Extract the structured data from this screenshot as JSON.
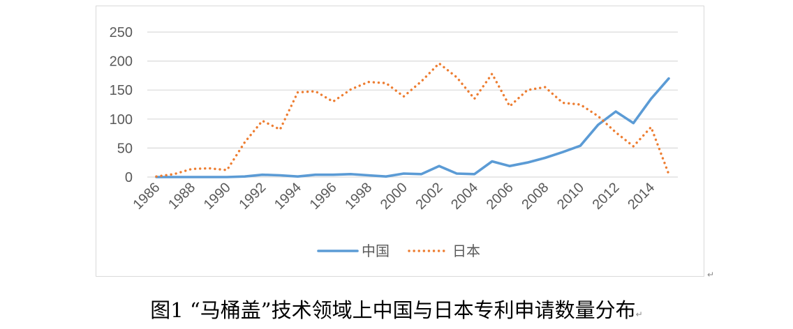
{
  "chart_data": {
    "type": "line",
    "title": "",
    "xlabel": "",
    "ylabel": "",
    "ylim": [
      0,
      250
    ],
    "yticks": [
      0,
      50,
      100,
      150,
      200,
      250
    ],
    "grid": true,
    "legend_position": "bottom",
    "x": [
      1986,
      1987,
      1988,
      1989,
      1990,
      1991,
      1992,
      1993,
      1994,
      1995,
      1996,
      1997,
      1998,
      1999,
      2000,
      2001,
      2002,
      2003,
      2004,
      2005,
      2006,
      2007,
      2008,
      2009,
      2010,
      2011,
      2012,
      2013,
      2014,
      2015
    ],
    "xtick_labels": [
      "1986",
      "1988",
      "1990",
      "1992",
      "1994",
      "1996",
      "1998",
      "2000",
      "2002",
      "2004",
      "2006",
      "2008",
      "2010",
      "2012",
      "2014"
    ],
    "series": [
      {
        "name": "中国",
        "color": "#5b9bd5",
        "style": "solid",
        "values": [
          0,
          0,
          0,
          0,
          0,
          1,
          4,
          3,
          1,
          4,
          4,
          5,
          3,
          1,
          6,
          5,
          19,
          6,
          5,
          27,
          19,
          25,
          33,
          43,
          54,
          90,
          113,
          93,
          135,
          170
        ]
      },
      {
        "name": "日本",
        "color": "#ed7d31",
        "style": "dotted",
        "values": [
          1,
          5,
          14,
          15,
          12,
          60,
          97,
          82,
          146,
          148,
          130,
          151,
          164,
          162,
          139,
          165,
          196,
          172,
          135,
          178,
          122,
          150,
          155,
          128,
          125,
          105,
          77,
          53,
          86,
          5
        ]
      }
    ]
  },
  "caption": {
    "text": "图1  “马桶盖”技术领域上中国与日本专利申请数量分布",
    "mark": "↵"
  },
  "frame_mark": "↵"
}
